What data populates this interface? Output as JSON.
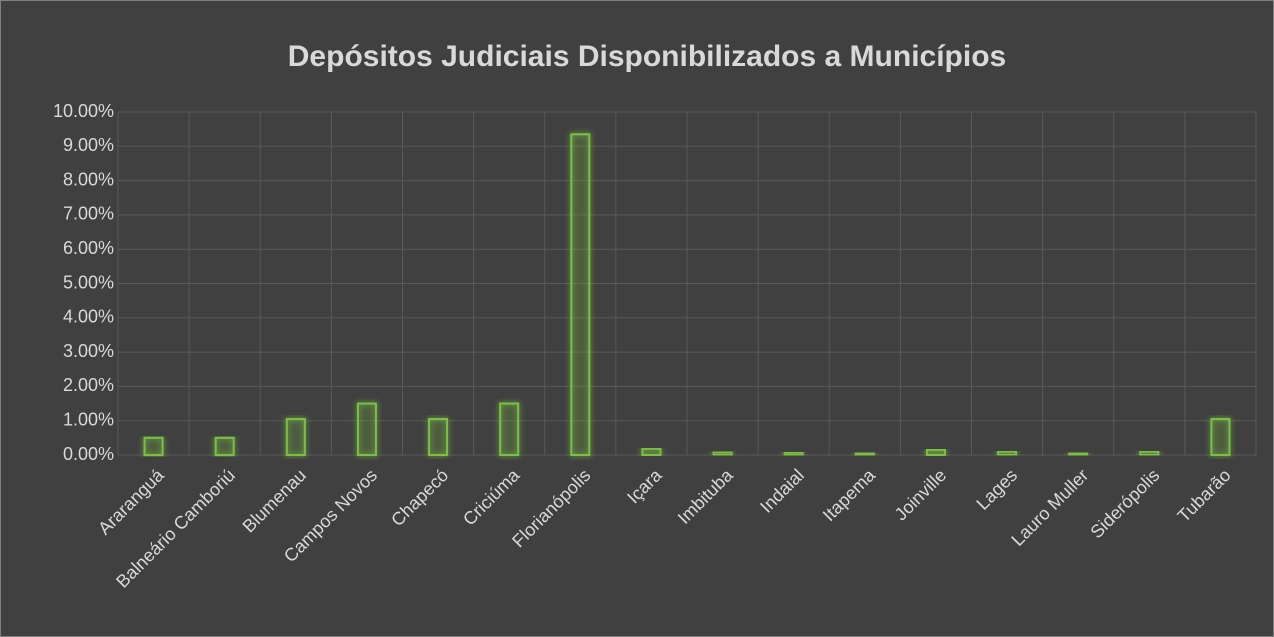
{
  "chart_data": {
    "type": "bar",
    "title": "Depósitos Judiciais Disponibilizados a Municípios",
    "categories": [
      "Araranguá",
      "Balneário Camboriú",
      "Blumenau",
      "Campos Novos",
      "Chapecó",
      "Criciúma",
      "Florianópolis",
      "Içara",
      "Imbituba",
      "Indaial",
      "Itapema",
      "Joinville",
      "Lages",
      "Lauro Muller",
      "Siderópolis",
      "Tubarão"
    ],
    "values": [
      0.5,
      0.5,
      1.05,
      1.5,
      1.05,
      1.5,
      9.35,
      0.18,
      0.08,
      0.07,
      0.06,
      0.15,
      0.1,
      0.06,
      0.1,
      1.05
    ],
    "color": "#7ac143",
    "ylim": [
      0,
      10
    ],
    "yticks": [
      {
        "value": 0,
        "label": "0.00%"
      },
      {
        "value": 1,
        "label": "1.00%"
      },
      {
        "value": 2,
        "label": "2.00%"
      },
      {
        "value": 3,
        "label": "3.00%"
      },
      {
        "value": 4,
        "label": "4.00%"
      },
      {
        "value": 5,
        "label": "5.00%"
      },
      {
        "value": 6,
        "label": "6.00%"
      },
      {
        "value": 7,
        "label": "7.00%"
      },
      {
        "value": 8,
        "label": "8.00%"
      },
      {
        "value": 9,
        "label": "9.00%"
      },
      {
        "value": 10,
        "label": "10.00%"
      }
    ],
    "grid": true
  }
}
